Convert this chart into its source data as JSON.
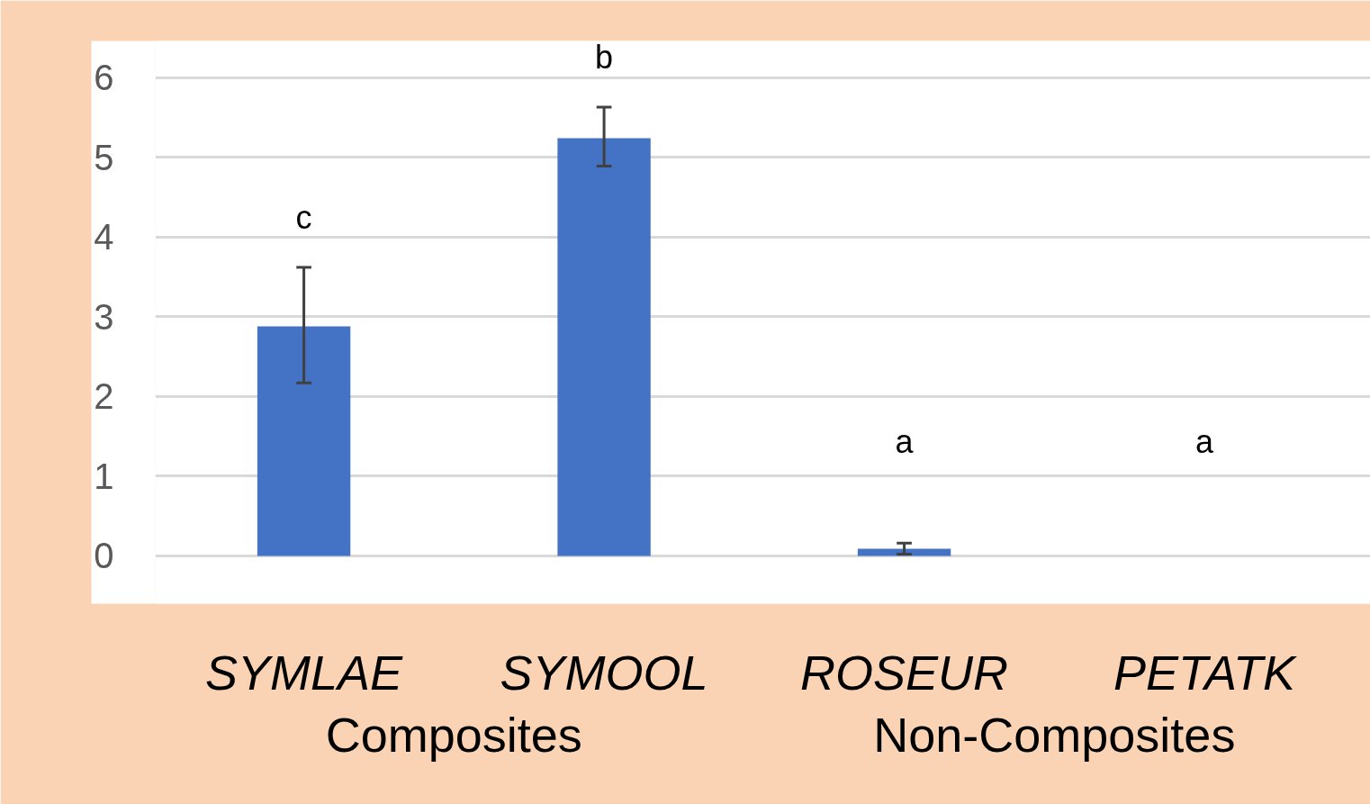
{
  "chart_data": {
    "type": "bar",
    "categories": [
      "SYMLAE",
      "SYMOOL",
      "ROSEUR",
      "PETATK"
    ],
    "values": [
      2.88,
      5.24,
      0.09,
      0
    ],
    "errors": [
      [
        2.17,
        3.62
      ],
      [
        4.89,
        5.63
      ],
      [
        0.02,
        0.16
      ],
      null
    ],
    "color": "#4472c4",
    "ylim": [
      -0.6,
      6.46
    ],
    "yticks": [
      0,
      1,
      2,
      3,
      4,
      5,
      6
    ],
    "grid": "y",
    "annotations": [
      "c",
      "b",
      "a",
      "a",
      "Composites",
      "Non-Composites"
    ]
  }
}
